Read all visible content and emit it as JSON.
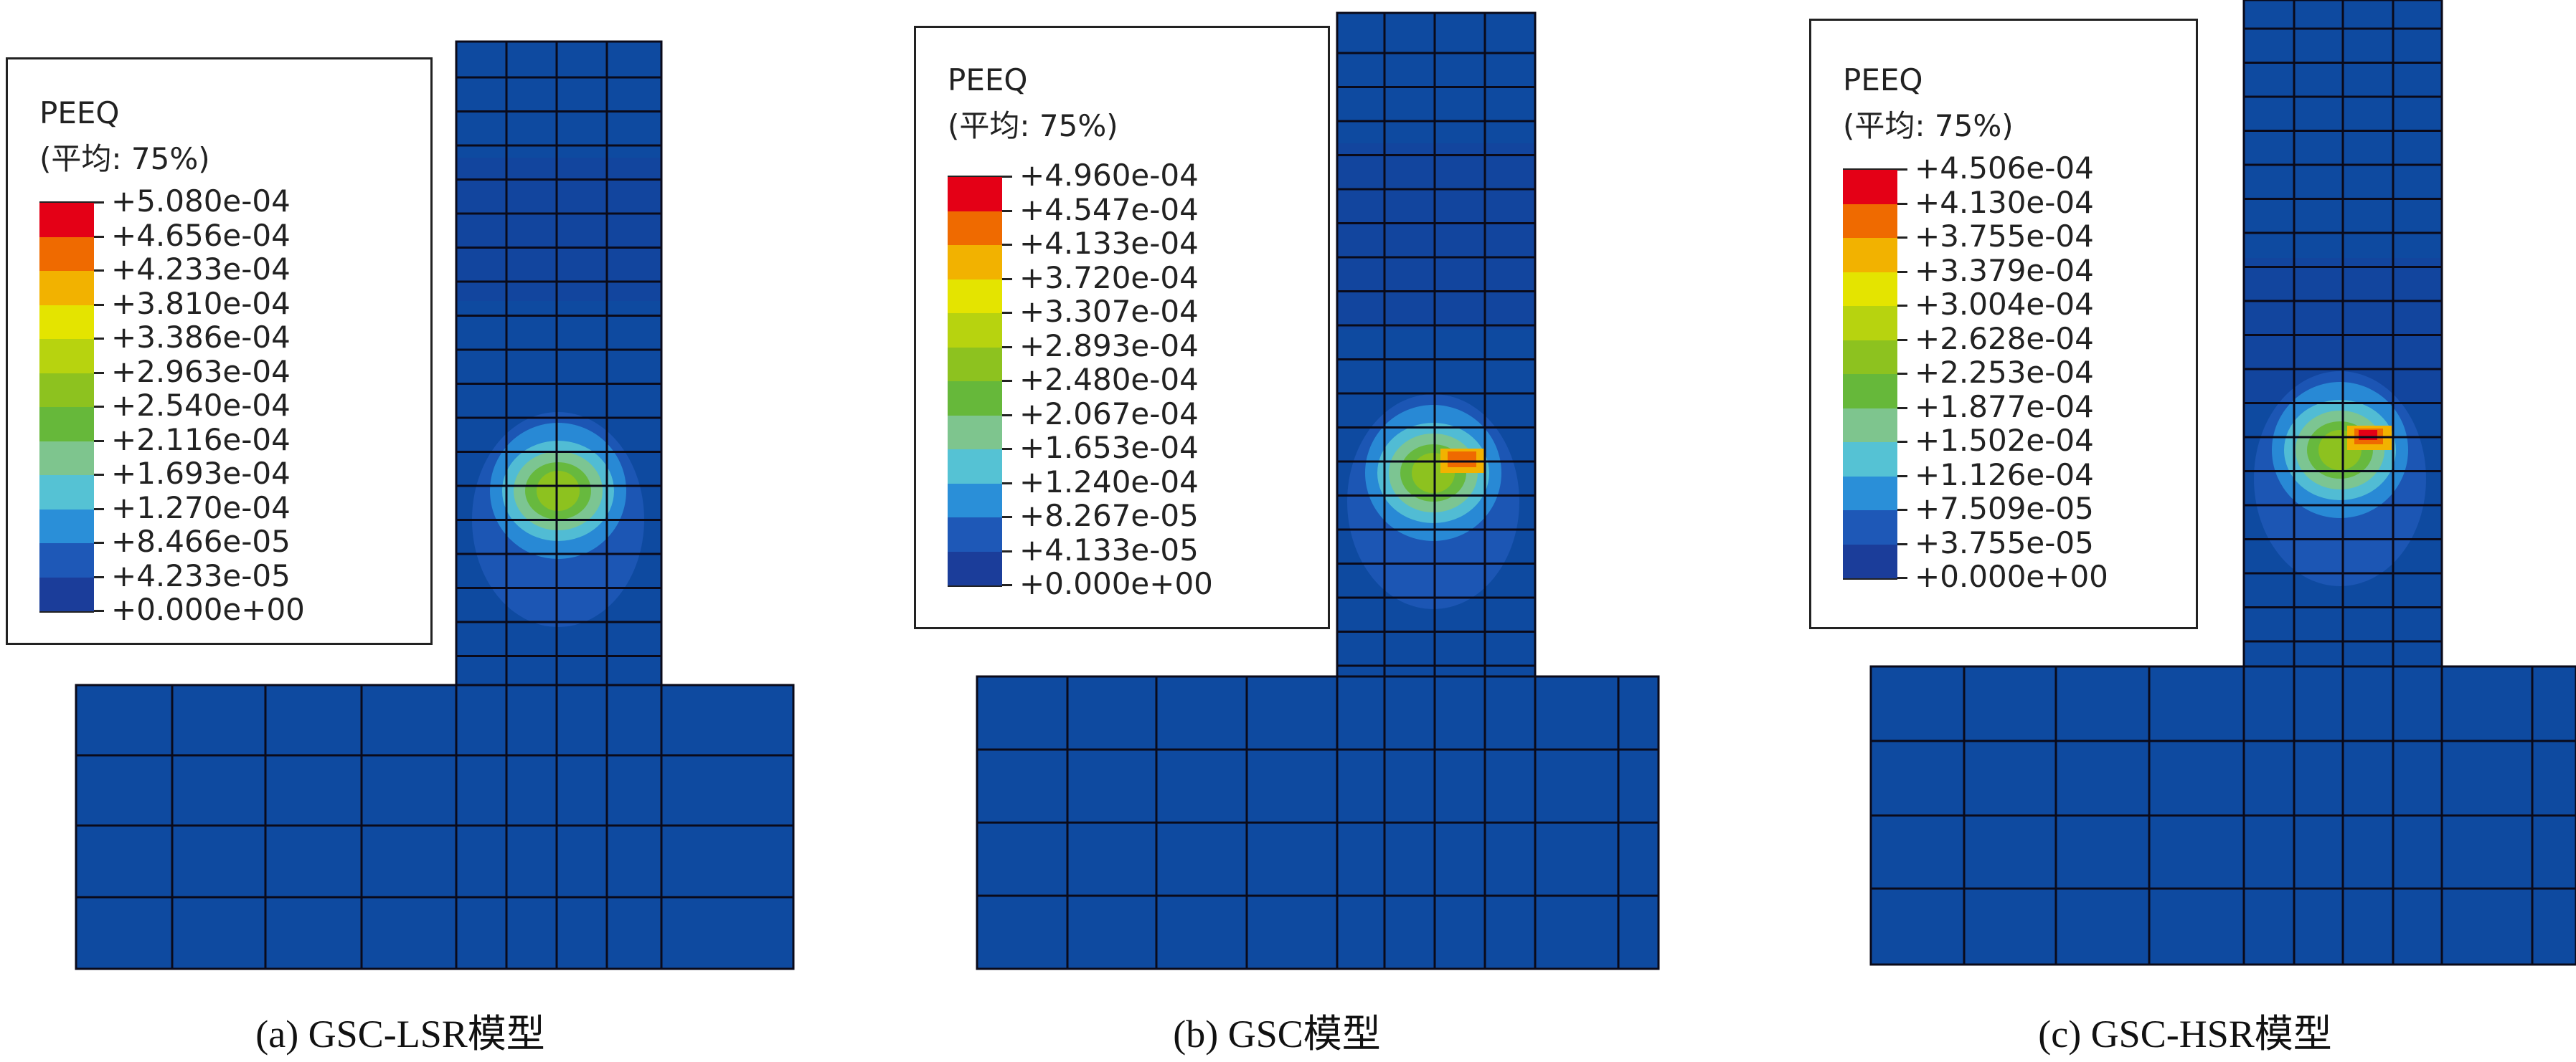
{
  "colormap": [
    "#1b3d9a",
    "#1e58b7",
    "#2a8fd8",
    "#55c2d4",
    "#7ec58e",
    "#66b83a",
    "#8dc21f",
    "#b7d30f",
    "#e4e400",
    "#f2b200",
    "#ef6a00",
    "#e40016"
  ],
  "background_element_color": "#0e4aa0",
  "panels": [
    {
      "id": "a",
      "legend": {
        "title": "PEEQ",
        "subtitle": "(平均: 75%)",
        "values": [
          "+5.080e-04",
          "+4.656e-04",
          "+4.233e-04",
          "+3.810e-04",
          "+3.386e-04",
          "+2.963e-04",
          "+2.540e-04",
          "+2.116e-04",
          "+1.693e-04",
          "+1.270e-04",
          "+8.466e-05",
          "+4.233e-05",
          "+0.000e+00"
        ]
      },
      "peak_fraction": 0.45,
      "caption": "(a) GSC-LSR模型"
    },
    {
      "id": "b",
      "legend": {
        "title": "PEEQ",
        "subtitle": "(平均: 75%)",
        "values": [
          "+4.960e-04",
          "+4.547e-04",
          "+4.133e-04",
          "+3.720e-04",
          "+3.307e-04",
          "+2.893e-04",
          "+2.480e-04",
          "+2.067e-04",
          "+1.653e-04",
          "+1.240e-04",
          "+8.267e-05",
          "+4.133e-05",
          "+0.000e+00"
        ]
      },
      "peak_fraction": 0.85,
      "caption": "(b) GSC模型"
    },
    {
      "id": "c",
      "legend": {
        "title": "PEEQ",
        "subtitle": "(平均: 75%)",
        "values": [
          "+4.506e-04",
          "+4.130e-04",
          "+3.755e-04",
          "+3.379e-04",
          "+3.004e-04",
          "+2.628e-04",
          "+2.253e-04",
          "+1.877e-04",
          "+1.502e-04",
          "+1.126e-04",
          "+7.509e-05",
          "+3.755e-05",
          "+0.000e+00"
        ]
      },
      "peak_fraction": 1.0,
      "caption": "(c) GSC-HSR模型"
    }
  ]
}
